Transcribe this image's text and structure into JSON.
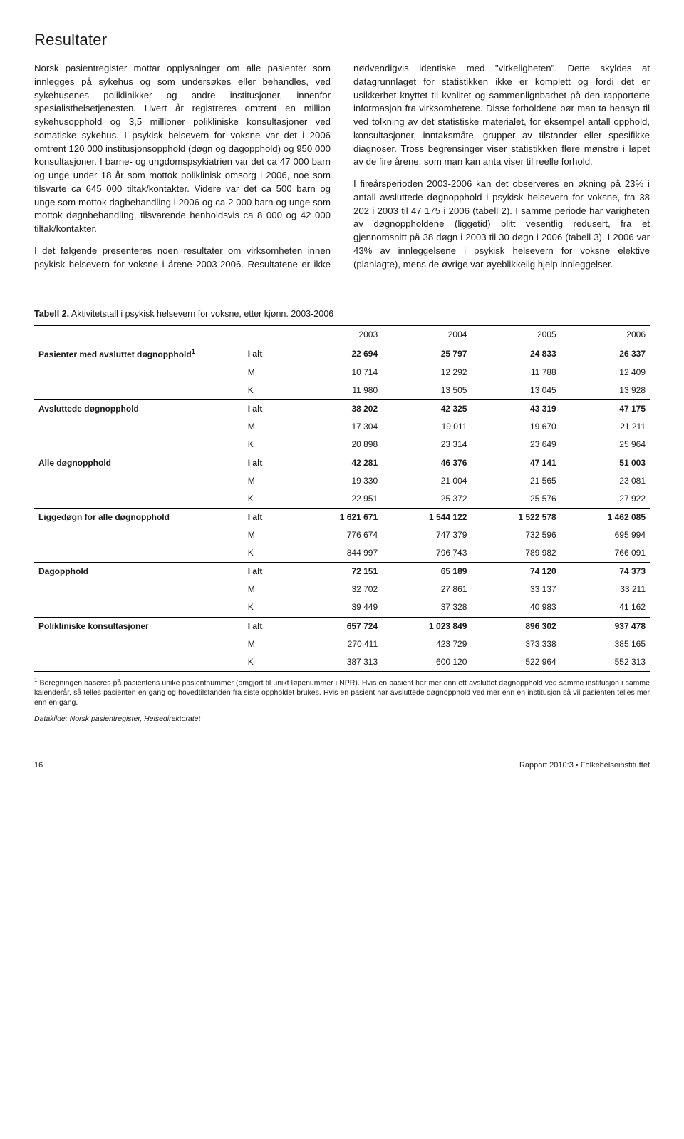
{
  "title": "Resultater",
  "paragraphs": {
    "p1": "Norsk pasientregister mottar opplysninger om alle pasienter som innlegges på sykehus og som undersøkes eller behandles, ved sykehusenes poliklinikker og andre institusjoner, innenfor spesialisthelsetjenesten. Hvert år registreres omtrent en million sykehusopphold og 3,5 millioner polikliniske konsultasjoner ved somatiske sykehus. I psykisk helsevern for voksne var det i 2006 omtrent 120 000 institusjonsopphold (døgn og dagopphold) og 950 000 konsultasjoner. I barne- og ungdomspsykiatrien var det ca 47 000 barn og unge under 18 år som mottok poliklinisk omsorg i 2006, noe som tilsvarte ca 645 000 tiltak/kontakter. Videre var det ca 500 barn og unge som mottok dagbehandling i 2006 og ca 2 000 barn og unge som mottok døgnbehandling, tilsvarende henholdsvis ca 8 000 og 42 000 tiltak/kontakter.",
    "p2": "I det følgende presenteres noen resultater om virksomheten innen psykisk helsevern for voksne i årene 2003-2006. Resultatene er ikke nødvendigvis identiske med \"virkeligheten\". Dette skyldes at datagrunnlaget for statistikken ikke er komplett og fordi det er usikkerhet knyttet til kvalitet og sammenlignbarhet på den rapporterte informasjon fra virksomhetene. Disse forholdene bør man ta hensyn til ved tolkning av det statistiske materialet, for eksempel antall opphold, konsultasjoner, inntaksmåte, grupper av tilstander eller spesifikke diagnoser. Tross begrensinger viser statistikken flere mønstre i løpet av de fire årene, som man kan anta viser til reelle forhold.",
    "p3": "I fireårsperioden 2003-2006 kan det observeres en økning på 23% i antall avsluttede døgnopphold i psykisk helsevern for voksne, fra 38 202 i 2003 til 47 175 i 2006 (tabell 2). I samme periode har varigheten av døgnoppholdene (liggetid) blitt vesentlig redusert, fra et gjennomsnitt på 38 døgn i 2003 til 30 døgn i 2006 (tabell 3). I 2006 var 43% av innleggelsene i psykisk helsevern for voksne elektive (planlagte), mens de øvrige var øyeblikkelig hjelp innleggelser."
  },
  "table": {
    "caption_bold": "Tabell 2.",
    "caption_rest": " Aktivitetstall i psykisk helsevern for voksne, etter kjønn. 2003-2006",
    "years": [
      "2003",
      "2004",
      "2005",
      "2006"
    ],
    "groups": [
      {
        "label": "Pasienter med avsluttet døgnopphold¹",
        "rows": [
          {
            "sub": "I alt",
            "vals": [
              "22 694",
              "25 797",
              "24 833",
              "26 337"
            ]
          },
          {
            "sub": "M",
            "vals": [
              "10 714",
              "12 292",
              "11 788",
              "12 409"
            ]
          },
          {
            "sub": "K",
            "vals": [
              "11 980",
              "13 505",
              "13 045",
              "13 928"
            ]
          }
        ]
      },
      {
        "label": "Avsluttede døgnopphold",
        "rows": [
          {
            "sub": "I alt",
            "vals": [
              "38 202",
              "42 325",
              "43 319",
              "47 175"
            ]
          },
          {
            "sub": "M",
            "vals": [
              "17 304",
              "19 011",
              "19 670",
              "21 211"
            ]
          },
          {
            "sub": "K",
            "vals": [
              "20 898",
              "23 314",
              "23 649",
              "25 964"
            ]
          }
        ]
      },
      {
        "label": "Alle døgnopphold",
        "rows": [
          {
            "sub": "I alt",
            "vals": [
              "42 281",
              "46 376",
              "47 141",
              "51 003"
            ]
          },
          {
            "sub": "M",
            "vals": [
              "19 330",
              "21 004",
              "21 565",
              "23 081"
            ]
          },
          {
            "sub": "K",
            "vals": [
              "22 951",
              "25 372",
              "25 576",
              "27 922"
            ]
          }
        ]
      },
      {
        "label": "Liggedøgn for alle døgnopphold",
        "rows": [
          {
            "sub": "I alt",
            "vals": [
              "1 621 671",
              "1 544 122",
              "1 522 578",
              "1 462 085"
            ]
          },
          {
            "sub": "M",
            "vals": [
              "776 674",
              "747 379",
              "732 596",
              "695 994"
            ]
          },
          {
            "sub": "K",
            "vals": [
              "844 997",
              "796 743",
              "789 982",
              "766 091"
            ]
          }
        ]
      },
      {
        "label": "Dagopphold",
        "rows": [
          {
            "sub": "I alt",
            "vals": [
              "72 151",
              "65 189",
              "74 120",
              "74 373"
            ]
          },
          {
            "sub": "M",
            "vals": [
              "32 702",
              "27 861",
              "33 137",
              "33 211"
            ]
          },
          {
            "sub": "K",
            "vals": [
              "39 449",
              "37 328",
              "40 983",
              "41 162"
            ]
          }
        ]
      },
      {
        "label": "Polikliniske konsultasjoner",
        "rows": [
          {
            "sub": "I alt",
            "vals": [
              "657 724",
              "1 023 849",
              "896 302",
              "937 478"
            ]
          },
          {
            "sub": "M",
            "vals": [
              "270 411",
              "423 729",
              "373 338",
              "385 165"
            ]
          },
          {
            "sub": "K",
            "vals": [
              "387 313",
              "600 120",
              "522 964",
              "552 313"
            ]
          }
        ]
      }
    ],
    "footnote": "¹ Beregningen baseres på pasientens unike pasientnummer (omgjort til unikt løpenummer i NPR). Hvis en pasient har mer enn ett avsluttet døgnopphold ved samme institusjon i samme kalenderår, så telles pasienten en gang og hovedtilstanden fra siste oppholdet brukes. Hvis en pasient har avsluttede døgnopphold ved mer enn en institusjon så vil pasienten telles mer enn en gang.",
    "datasource": "Datakilde: Norsk pasientregister, Helsedirektoratet"
  },
  "footer": {
    "page": "16",
    "right": "Rapport 2010:3 • Folkehelseinstituttet"
  }
}
